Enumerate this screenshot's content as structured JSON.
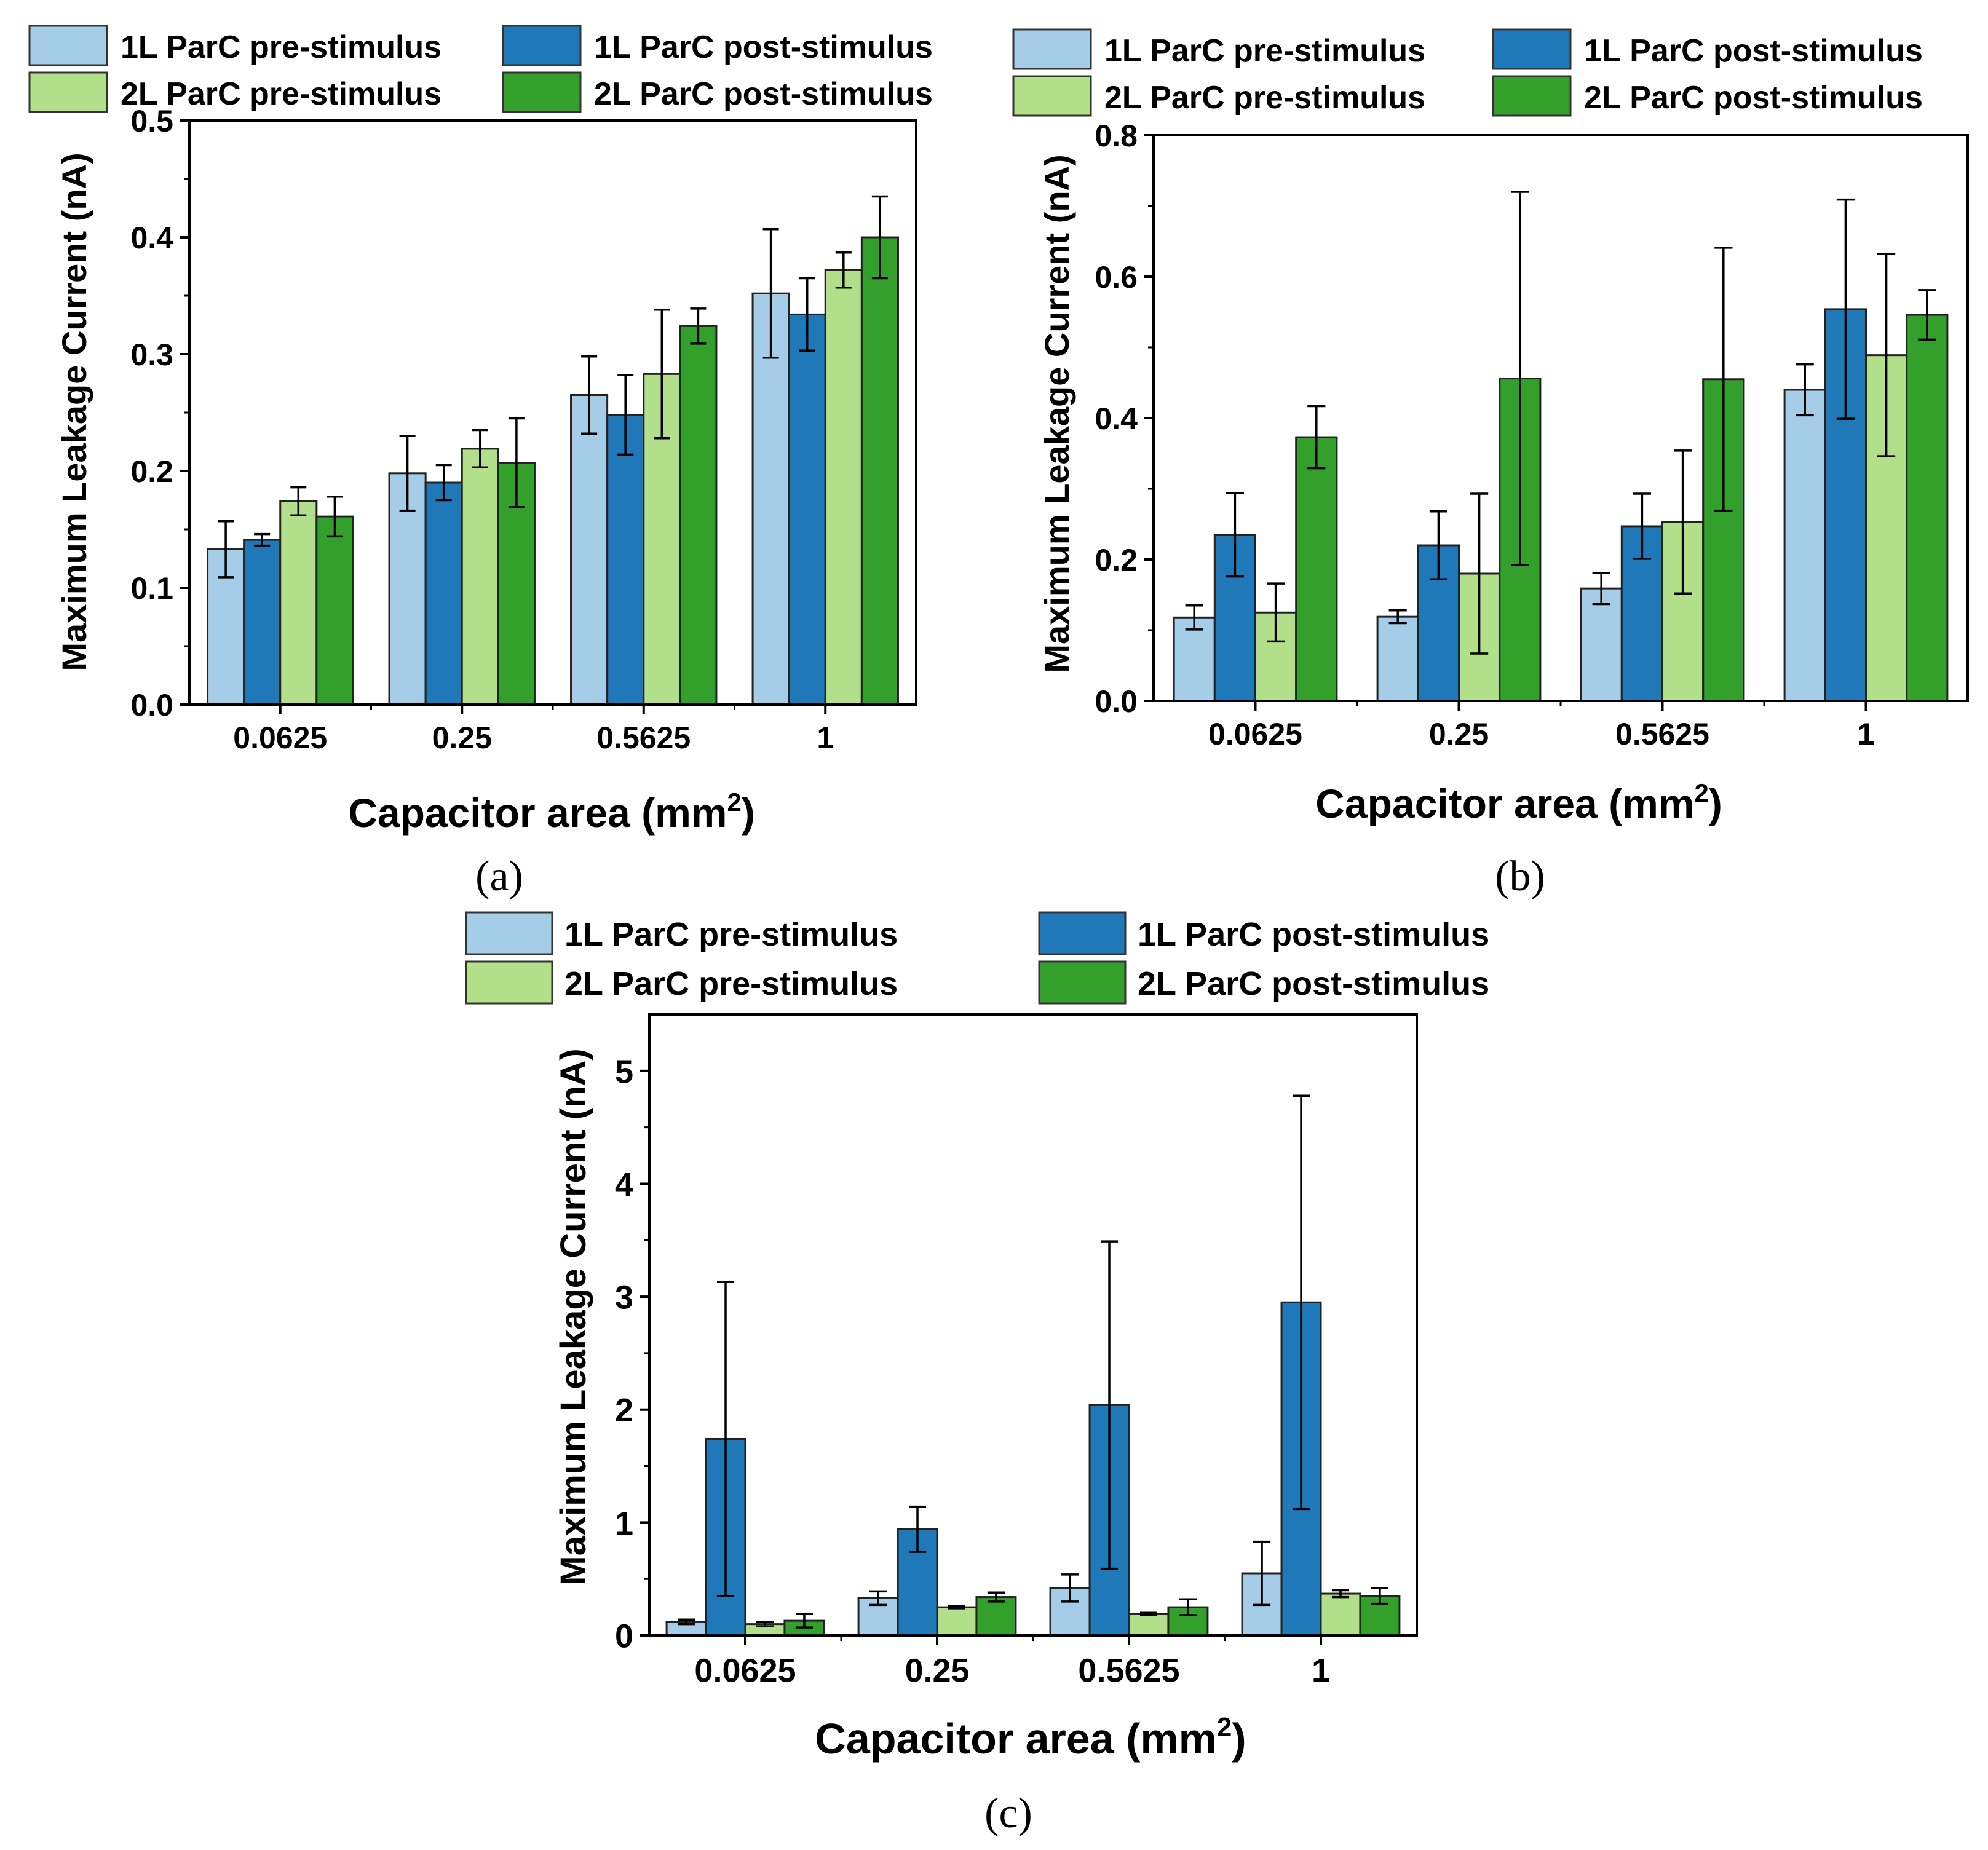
{
  "colors": {
    "pre_1L": "#a6cde8",
    "post_1L": "#1f78b8",
    "pre_2L": "#b2df8a",
    "post_2L": "#33a02c",
    "axis": "#000000"
  },
  "legend": {
    "pre_1L": "1L ParC pre-stimulus",
    "post_1L": "1L ParC post-stimulus",
    "pre_2L": "2L ParC pre-stimulus",
    "post_2L": "2L ParC post-stimulus"
  },
  "chart_data": [
    {
      "type": "bar",
      "panel_label": "(a)",
      "xlabel": "Capacitor area (mm",
      "xlabel_sup": "2",
      "xlabel_end": ")",
      "ylabel": "Maximum Leakage Current (nA)",
      "ylim": [
        0,
        0.5
      ],
      "yticks": [
        "0.0",
        "0.1",
        "0.2",
        "0.3",
        "0.4",
        "0.5"
      ],
      "categories": [
        "0.0625",
        "0.25",
        "0.5625",
        "1"
      ],
      "series": [
        {
          "name": "1L ParC pre-stimulus",
          "key": "pre_1L",
          "values": [
            0.133,
            0.198,
            0.265,
            0.352
          ],
          "errors": [
            0.024,
            0.032,
            0.033,
            0.055
          ]
        },
        {
          "name": "1L ParC post-stimulus",
          "key": "post_1L",
          "values": [
            0.141,
            0.19,
            0.248,
            0.334
          ],
          "errors": [
            0.005,
            0.015,
            0.034,
            0.031
          ]
        },
        {
          "name": "2L ParC pre-stimulus",
          "key": "pre_2L",
          "values": [
            0.174,
            0.219,
            0.283,
            0.372
          ],
          "errors": [
            0.012,
            0.016,
            0.055,
            0.015
          ]
        },
        {
          "name": "2L ParC post-stimulus",
          "key": "post_2L",
          "values": [
            0.161,
            0.207,
            0.324,
            0.4
          ],
          "errors": [
            0.017,
            0.038,
            0.015,
            0.035
          ]
        }
      ]
    },
    {
      "type": "bar",
      "panel_label": "(b)",
      "xlabel": "Capacitor area (mm",
      "xlabel_sup": "2",
      "xlabel_end": ")",
      "ylabel": "Maximum Leakage Current (nA)",
      "ylim": [
        0,
        0.8
      ],
      "yticks": [
        "0.0",
        "0.2",
        "0.4",
        "0.6",
        "0.8"
      ],
      "categories": [
        "0.0625",
        "0.25",
        "0.5625",
        "1"
      ],
      "series": [
        {
          "name": "1L ParC pre-stimulus",
          "key": "pre_1L",
          "values": [
            0.118,
            0.119,
            0.159,
            0.44
          ],
          "errors": [
            0.017,
            0.009,
            0.022,
            0.036
          ]
        },
        {
          "name": "1L ParC post-stimulus",
          "key": "post_1L",
          "values": [
            0.235,
            0.22,
            0.247,
            0.554
          ],
          "errors": [
            0.059,
            0.048,
            0.046,
            0.155
          ]
        },
        {
          "name": "2L ParC pre-stimulus",
          "key": "pre_2L",
          "values": [
            0.125,
            0.18,
            0.253,
            0.489
          ],
          "errors": [
            0.041,
            0.113,
            0.101,
            0.143
          ]
        },
        {
          "name": "2L ParC post-stimulus",
          "key": "post_2L",
          "values": [
            0.373,
            0.456,
            0.455,
            0.546
          ],
          "errors": [
            0.044,
            0.264,
            0.186,
            0.035
          ]
        }
      ]
    },
    {
      "type": "bar",
      "panel_label": "(c)",
      "xlabel": "Capacitor area (mm",
      "xlabel_sup": "2",
      "xlabel_end": ")",
      "ylabel": "Maximum Leakage Current (nA)",
      "ylim": [
        0,
        5.5
      ],
      "yticks": [
        "0",
        "1",
        "2",
        "3",
        "4",
        "5"
      ],
      "categories": [
        "0.0625",
        "0.25",
        "0.5625",
        "1"
      ],
      "series": [
        {
          "name": "1L ParC pre-stimulus",
          "key": "pre_1L",
          "values": [
            0.12,
            0.33,
            0.42,
            0.55
          ],
          "errors": [
            0.02,
            0.06,
            0.12,
            0.28
          ]
        },
        {
          "name": "1L ParC post-stimulus",
          "key": "post_1L",
          "values": [
            1.74,
            0.94,
            2.04,
            2.95
          ],
          "errors": [
            1.39,
            0.2,
            1.45,
            1.83
          ]
        },
        {
          "name": "2L ParC pre-stimulus",
          "key": "pre_2L",
          "values": [
            0.1,
            0.25,
            0.19,
            0.37
          ],
          "errors": [
            0.02,
            0.01,
            0.01,
            0.03
          ]
        },
        {
          "name": "2L ParC post-stimulus",
          "key": "post_2L",
          "values": [
            0.13,
            0.34,
            0.25,
            0.35
          ],
          "errors": [
            0.06,
            0.04,
            0.07,
            0.07
          ]
        }
      ]
    }
  ]
}
